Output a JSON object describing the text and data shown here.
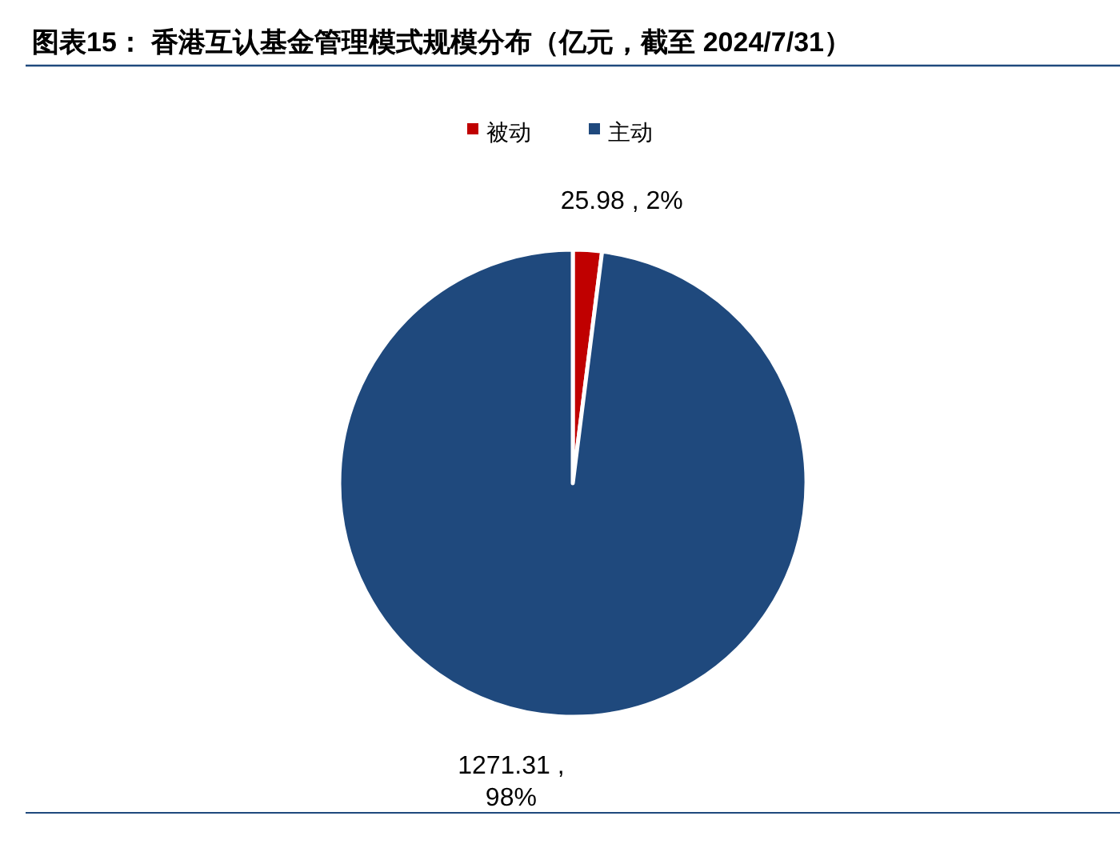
{
  "chart_data": {
    "type": "pie",
    "title": "图表15： 香港互认基金管理模式规模分布（亿元，截至 2024/7/31）",
    "categories": [
      "被动",
      "主动"
    ],
    "values": [
      25.98,
      1271.31
    ],
    "colors": [
      "#c00000",
      "#1f497d"
    ],
    "value_labels": [
      "25.98 , 2%",
      "1271.31 ,\n98%"
    ],
    "legend": "top"
  }
}
